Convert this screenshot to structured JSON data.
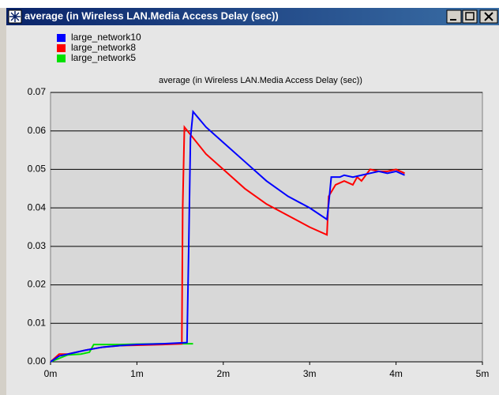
{
  "window": {
    "title": "average (in Wireless LAN.Media Access Delay (sec))"
  },
  "chart_data": {
    "type": "line",
    "title": "average (in Wireless LAN.Media Access Delay (sec))",
    "series": [
      {
        "name": "large_network10",
        "color": "#0000ff",
        "x": [
          0,
          0.1,
          0.2,
          0.4,
          0.6,
          0.8,
          1.0,
          1.3,
          1.58,
          1.6,
          1.62,
          1.65,
          1.8,
          2.0,
          2.25,
          2.5,
          2.75,
          3.0,
          3.2,
          3.22,
          3.25,
          3.35,
          3.4,
          3.5,
          3.6,
          3.7,
          3.8,
          3.9,
          4.0,
          4.1
        ],
        "values": [
          0,
          0.0015,
          0.002,
          0.003,
          0.0038,
          0.0042,
          0.0045,
          0.0047,
          0.005,
          0.03,
          0.058,
          0.065,
          0.061,
          0.057,
          0.052,
          0.047,
          0.043,
          0.04,
          0.037,
          0.041,
          0.048,
          0.048,
          0.0485,
          0.048,
          0.0485,
          0.049,
          0.0495,
          0.049,
          0.0495,
          0.0485
        ]
      },
      {
        "name": "large_network8",
        "color": "#ff0000",
        "x": [
          0,
          0.1,
          0.2,
          0.4,
          0.6,
          0.8,
          1.0,
          1.3,
          1.52,
          1.53,
          1.55,
          1.8,
          2.0,
          2.25,
          2.5,
          2.75,
          3.0,
          3.2,
          3.22,
          3.3,
          3.4,
          3.5,
          3.55,
          3.6,
          3.7,
          3.8,
          3.9,
          4.0,
          4.1
        ],
        "values": [
          0,
          0.002,
          0.002,
          0.003,
          0.0038,
          0.0042,
          0.0043,
          0.0045,
          0.0047,
          0.04,
          0.061,
          0.054,
          0.05,
          0.045,
          0.041,
          0.038,
          0.035,
          0.033,
          0.043,
          0.046,
          0.047,
          0.046,
          0.048,
          0.047,
          0.05,
          0.0495,
          0.0495,
          0.05,
          0.049
        ]
      },
      {
        "name": "large_network5",
        "color": "#00e000",
        "x": [
          0,
          0.2,
          0.35,
          0.45,
          0.5,
          0.8,
          1.0,
          1.3,
          1.65
        ],
        "values": [
          0,
          0.0018,
          0.002,
          0.0025,
          0.0045,
          0.0045,
          0.0046,
          0.0047,
          0.0047
        ]
      }
    ],
    "xlim": [
      0,
      5
    ],
    "xticks": [
      {
        "value": 0,
        "label": "0m"
      },
      {
        "value": 1,
        "label": "1m"
      },
      {
        "value": 2,
        "label": "2m"
      },
      {
        "value": 3,
        "label": "3m"
      },
      {
        "value": 4,
        "label": "4m"
      },
      {
        "value": 5,
        "label": "5m"
      }
    ],
    "ylim": [
      0,
      0.07
    ],
    "yticks": [
      {
        "value": 0,
        "label": "0.00"
      },
      0.01,
      0.02,
      0.03,
      0.04,
      0.05,
      0.06,
      0.07
    ],
    "grid": true
  }
}
